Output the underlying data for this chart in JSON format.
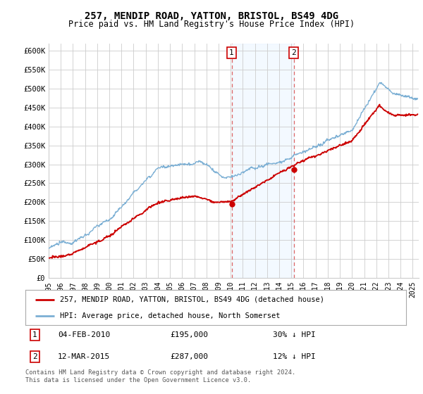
{
  "title": "257, MENDIP ROAD, YATTON, BRISTOL, BS49 4DG",
  "subtitle": "Price paid vs. HM Land Registry's House Price Index (HPI)",
  "ylabel_ticks": [
    "£0",
    "£50K",
    "£100K",
    "£150K",
    "£200K",
    "£250K",
    "£300K",
    "£350K",
    "£400K",
    "£450K",
    "£500K",
    "£550K",
    "£600K"
  ],
  "ytick_values": [
    0,
    50000,
    100000,
    150000,
    200000,
    250000,
    300000,
    350000,
    400000,
    450000,
    500000,
    550000,
    600000
  ],
  "ylim": [
    0,
    620000
  ],
  "sale1_date": 2010.08,
  "sale1_price": 195000,
  "sale2_date": 2015.19,
  "sale2_price": 287000,
  "hpi_color": "#7bafd4",
  "price_color": "#cc0000",
  "shade_color": "#ddeeff",
  "vline_color": "#dd6666",
  "legend_label1": "257, MENDIP ROAD, YATTON, BRISTOL, BS49 4DG (detached house)",
  "legend_label2": "HPI: Average price, detached house, North Somerset",
  "ann1_date": "04-FEB-2010",
  "ann1_price": "£195,000",
  "ann1_hpi": "30% ↓ HPI",
  "ann2_date": "12-MAR-2015",
  "ann2_price": "£287,000",
  "ann2_hpi": "12% ↓ HPI",
  "footer": "Contains HM Land Registry data © Crown copyright and database right 2024.\nThis data is licensed under the Open Government Licence v3.0.",
  "xmin": 1995.0,
  "xmax": 2025.5,
  "background_color": "#ffffff",
  "grid_color": "#cccccc"
}
